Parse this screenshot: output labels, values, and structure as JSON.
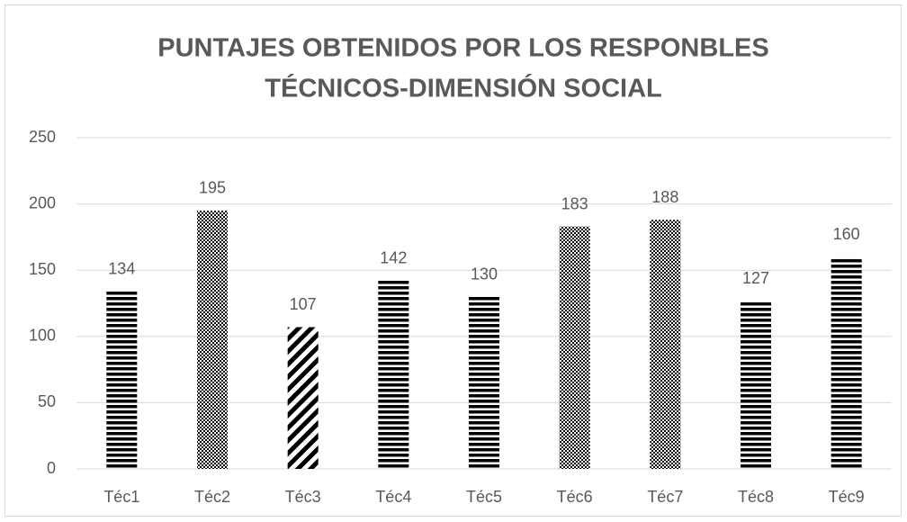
{
  "chart_data": {
    "type": "bar",
    "title": [
      "PUNTAJES OBTENIDOS POR LOS RESPONBLES",
      "TÉCNICOS-DIMENSIÓN SOCIAL"
    ],
    "categories": [
      "Téc1",
      "Téc2",
      "Téc3",
      "Téc4",
      "Téc5",
      "Téc6",
      "Téc7",
      "Téc8",
      "Téc9"
    ],
    "values": [
      134,
      195,
      107,
      142,
      130,
      183,
      188,
      127,
      160
    ],
    "patterns": [
      "horizontal",
      "checker",
      "diagonal",
      "horizontal",
      "horizontal",
      "checker",
      "checker",
      "horizontal",
      "horizontal"
    ],
    "color": "#000000",
    "ylim": [
      0,
      250
    ],
    "yticks": [
      0,
      50,
      100,
      150,
      200,
      250
    ],
    "grid": true
  }
}
